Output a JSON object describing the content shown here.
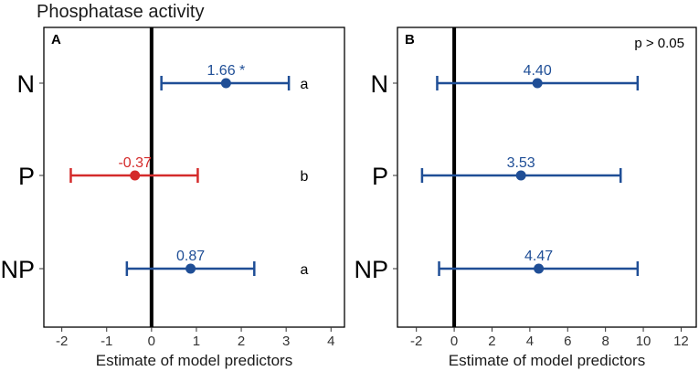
{
  "title": "Phosphatase activity",
  "colors": {
    "positive": "#1f4e96",
    "negative": "#d42b2b",
    "zero_line": "#000000",
    "frame": "#000000"
  },
  "chart_data": [
    {
      "type": "forest",
      "panel": "A",
      "categories": [
        "N",
        "P",
        "NP"
      ],
      "estimates": [
        1.66,
        -0.37,
        0.87
      ],
      "lower": [
        0.22,
        -1.8,
        -0.55
      ],
      "upper": [
        3.06,
        1.03,
        2.29
      ],
      "value_labels": [
        "1.66 *",
        "-0.37",
        "0.87"
      ],
      "group_letters": [
        "a",
        "b",
        "a"
      ],
      "xlabel": "Estimate of model predictors",
      "xlim": [
        -2.4,
        4.3
      ],
      "xticks": [
        -2,
        -1,
        0,
        1,
        2,
        3,
        4
      ],
      "annotation": ""
    },
    {
      "type": "forest",
      "panel": "B",
      "categories": [
        "N",
        "P",
        "NP"
      ],
      "estimates": [
        4.4,
        3.53,
        4.47
      ],
      "lower": [
        -0.9,
        -1.7,
        -0.8
      ],
      "upper": [
        9.7,
        8.8,
        9.7
      ],
      "value_labels": [
        "4.40",
        "3.53",
        "4.47"
      ],
      "group_letters": [
        "",
        "",
        ""
      ],
      "xlabel": "Estimate of model predictors",
      "xlim": [
        -3.0,
        12.8
      ],
      "xticks": [
        -2,
        0,
        2,
        4,
        6,
        8,
        10,
        12
      ],
      "annotation": "p > 0.05"
    }
  ]
}
